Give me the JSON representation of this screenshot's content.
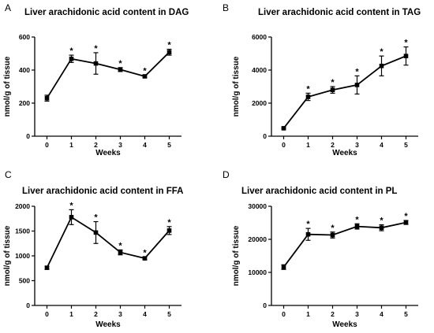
{
  "chart_data": [
    {
      "type": "line",
      "letter": "A",
      "title": "Liver arachidonic acid content in DAG",
      "xlabel": "Weeks",
      "ylabel": "nmol/g of tissue",
      "x": [
        0,
        1,
        2,
        3,
        4,
        5
      ],
      "y": [
        230,
        468,
        440,
        403,
        362,
        508
      ],
      "error": [
        18,
        22,
        65,
        12,
        8,
        18
      ],
      "significant": [
        false,
        true,
        true,
        true,
        true,
        true
      ],
      "sig_symbol": "*",
      "xticks": [
        "0",
        "1",
        "2",
        "3",
        "4",
        "5"
      ],
      "yticks": [
        "0",
        "200",
        "400",
        "600"
      ],
      "ylim": [
        0,
        600
      ],
      "xlim": [
        -0.5,
        5.5
      ]
    },
    {
      "type": "line",
      "letter": "B",
      "title": "Liver arachidonic acid content in TAG",
      "xlabel": "Weeks",
      "ylabel": "nmol/g of tissue",
      "x": [
        0,
        1,
        2,
        3,
        4,
        5
      ],
      "y": [
        480,
        2380,
        2800,
        3100,
        4250,
        4850
      ],
      "error": [
        40,
        220,
        200,
        550,
        600,
        550
      ],
      "significant": [
        false,
        true,
        true,
        true,
        true,
        true
      ],
      "sig_symbol": "*",
      "xticks": [
        "0",
        "1",
        "2",
        "3",
        "4",
        "5"
      ],
      "yticks": [
        "0",
        "2000",
        "4000",
        "6000"
      ],
      "ylim": [
        0,
        6000
      ],
      "xlim": [
        -0.5,
        5.5
      ]
    },
    {
      "type": "line",
      "letter": "C",
      "title": "Liver arachidonic acid content in FFA",
      "xlabel": "Weeks",
      "ylabel": "nmol/g of tissue",
      "x": [
        0,
        1,
        2,
        3,
        4,
        5
      ],
      "y": [
        760,
        1780,
        1470,
        1070,
        950,
        1510
      ],
      "error": [
        30,
        150,
        220,
        50,
        25,
        80
      ],
      "significant": [
        false,
        true,
        true,
        true,
        true,
        true
      ],
      "sig_symbol": "*",
      "xticks": [
        "0",
        "1",
        "2",
        "3",
        "4",
        "5"
      ],
      "yticks": [
        "0",
        "500",
        "1000",
        "1500",
        "2000"
      ],
      "ylim": [
        0,
        2000
      ],
      "xlim": [
        -0.5,
        5.5
      ]
    },
    {
      "type": "line",
      "letter": "D",
      "title": "Liver arachidonic acid content in PL",
      "xlabel": "Weeks",
      "ylabel": "nmol/g of tissue",
      "x": [
        0,
        1,
        2,
        3,
        4,
        5
      ],
      "y": [
        11600,
        21500,
        21300,
        23900,
        23500,
        25100
      ],
      "error": [
        700,
        1800,
        900,
        800,
        900,
        600
      ],
      "significant": [
        false,
        true,
        true,
        true,
        true,
        true
      ],
      "sig_symbol": "*",
      "xticks": [
        "0",
        "1",
        "2",
        "3",
        "4",
        "5"
      ],
      "yticks": [
        "0",
        "10000",
        "20000",
        "30000"
      ],
      "ylim": [
        0,
        30000
      ],
      "xlim": [
        -0.5,
        5.5
      ]
    }
  ]
}
